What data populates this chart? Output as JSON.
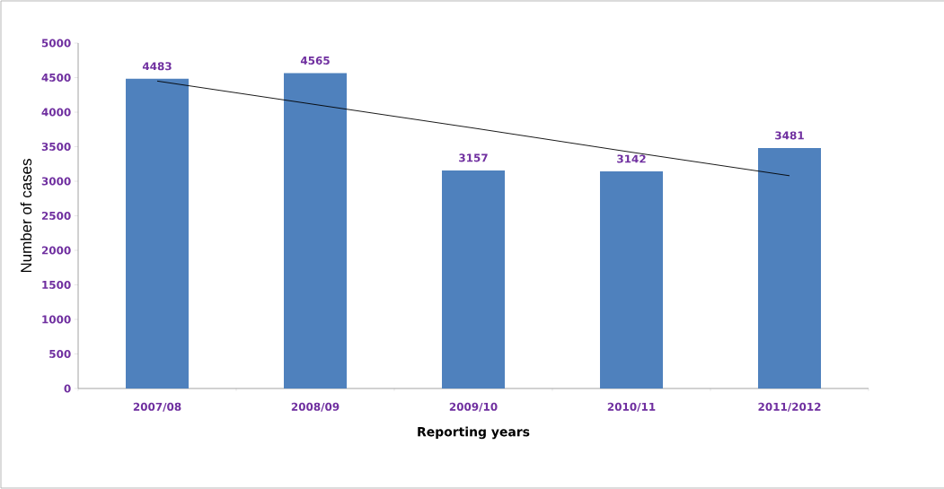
{
  "chart_data": {
    "type": "bar",
    "xlabel": "Reporting years",
    "ylabel": "Number of cases",
    "categories": [
      "2007/08",
      "2008/09",
      "2009/10",
      "2010/11",
      "2011/2012"
    ],
    "series": [
      {
        "color": "#4f81bd",
        "values": [
          4483,
          4565,
          3157,
          3142,
          3481
        ],
        "value_labels": [
          "4483",
          "4565",
          "3157",
          "3142",
          "3481"
        ]
      },
      {
        "type": "line",
        "color": "#000000",
        "values": [
          4450,
          4110,
          3770,
          3420,
          3080
        ]
      }
    ],
    "ylim": [
      0,
      5000
    ],
    "yticks": [
      0,
      500,
      1000,
      1500,
      2000,
      2500,
      3000,
      3500,
      4000,
      4500,
      5000
    ]
  }
}
